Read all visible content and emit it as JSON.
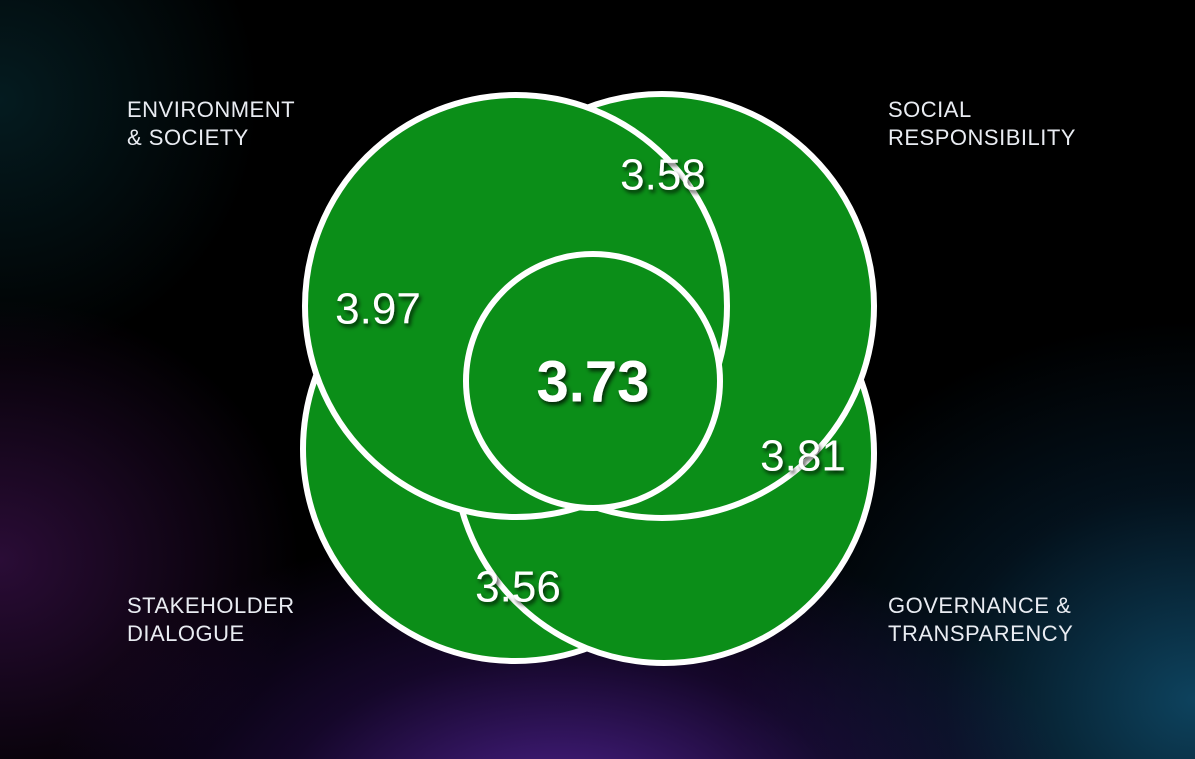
{
  "labels": {
    "environment_society": "ENVIRONMENT\n& SOCIETY",
    "social_responsibility": "SOCIAL\nRESPONSIBILITY",
    "stakeholder_dialogue": "STAKEHOLDER\nDIALOGUE",
    "governance_transparency": "GOVERNANCE &\nTRANSPARENCY"
  },
  "scores": {
    "environment_society": "3.97",
    "social_responsibility": "3.58",
    "stakeholder_dialogue": "3.56",
    "governance_transparency": "3.81",
    "overall": "3.73"
  },
  "colors": {
    "circle_fill": "#0b8e18",
    "circle_stroke": "#ffffff",
    "text": "#ffffff",
    "label_text": "#e9ecf2"
  }
}
